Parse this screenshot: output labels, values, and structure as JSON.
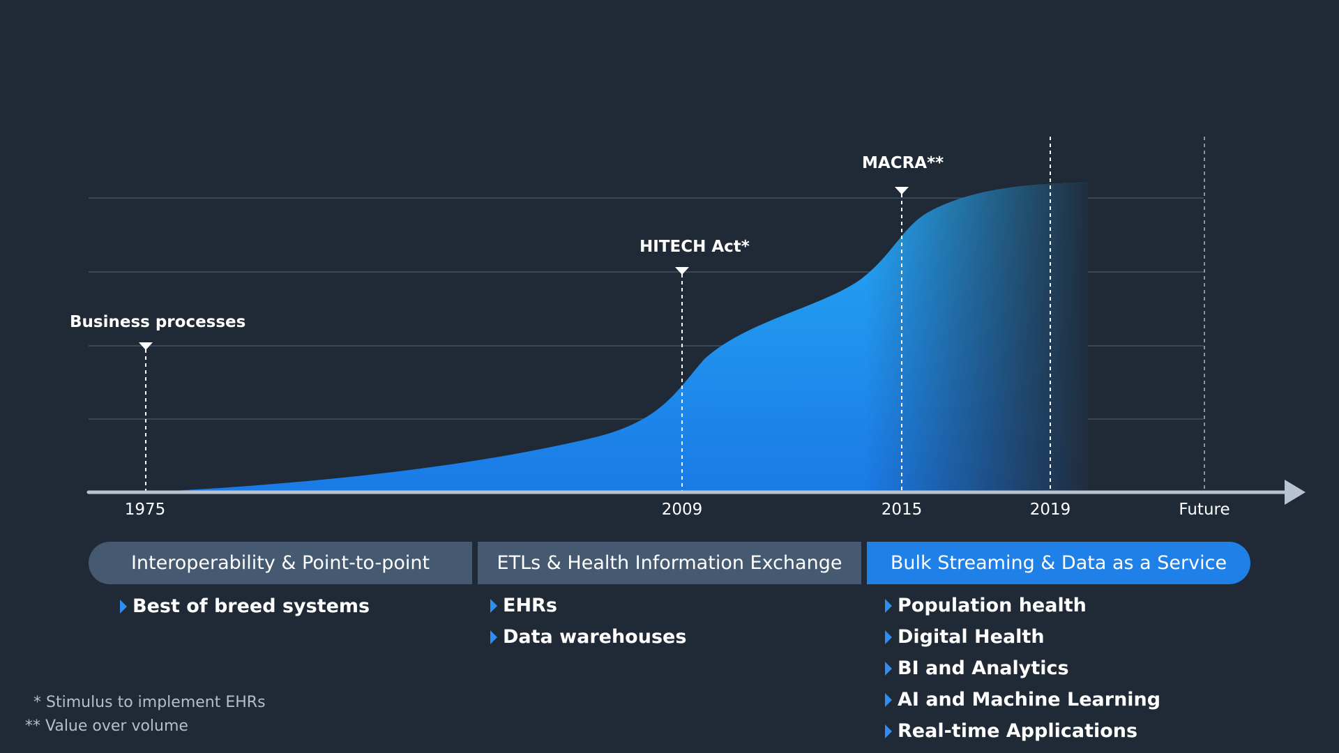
{
  "chart_data": {
    "type": "area",
    "title": "",
    "x_ticks": [
      "1975",
      "2009",
      "2015",
      "2019",
      "Future"
    ],
    "events": [
      {
        "label": "Business processes",
        "year": "1975"
      },
      {
        "label": "HITECH Act*",
        "year": "2009"
      },
      {
        "label": "MACRA**",
        "year": "2015"
      }
    ],
    "gridlines": 4,
    "curve_shape": "exponential-growth then plateau after 2015"
  },
  "phases": [
    {
      "title": "Interoperability & Point-to-point",
      "items": [
        "Best of breed systems"
      ]
    },
    {
      "title": "ETLs & Health Information Exchange",
      "items": [
        "EHRs",
        "Data warehouses"
      ]
    },
    {
      "title": "Bulk Streaming & Data as a Service",
      "items": [
        "Population health",
        "Digital Health",
        "BI and Analytics",
        "AI and Machine Learning",
        "Real-time Applications"
      ]
    }
  ],
  "footnotes": [
    "* Stimulus to implement EHRs",
    "** Value over volume"
  ],
  "colors": {
    "background": "#202a37",
    "band_gray": "#455a71",
    "band_blue": "#1f81e8",
    "area_top": "#27aaf5",
    "area_bottom": "#1a7ae6",
    "axis": "#b7c3d1"
  }
}
